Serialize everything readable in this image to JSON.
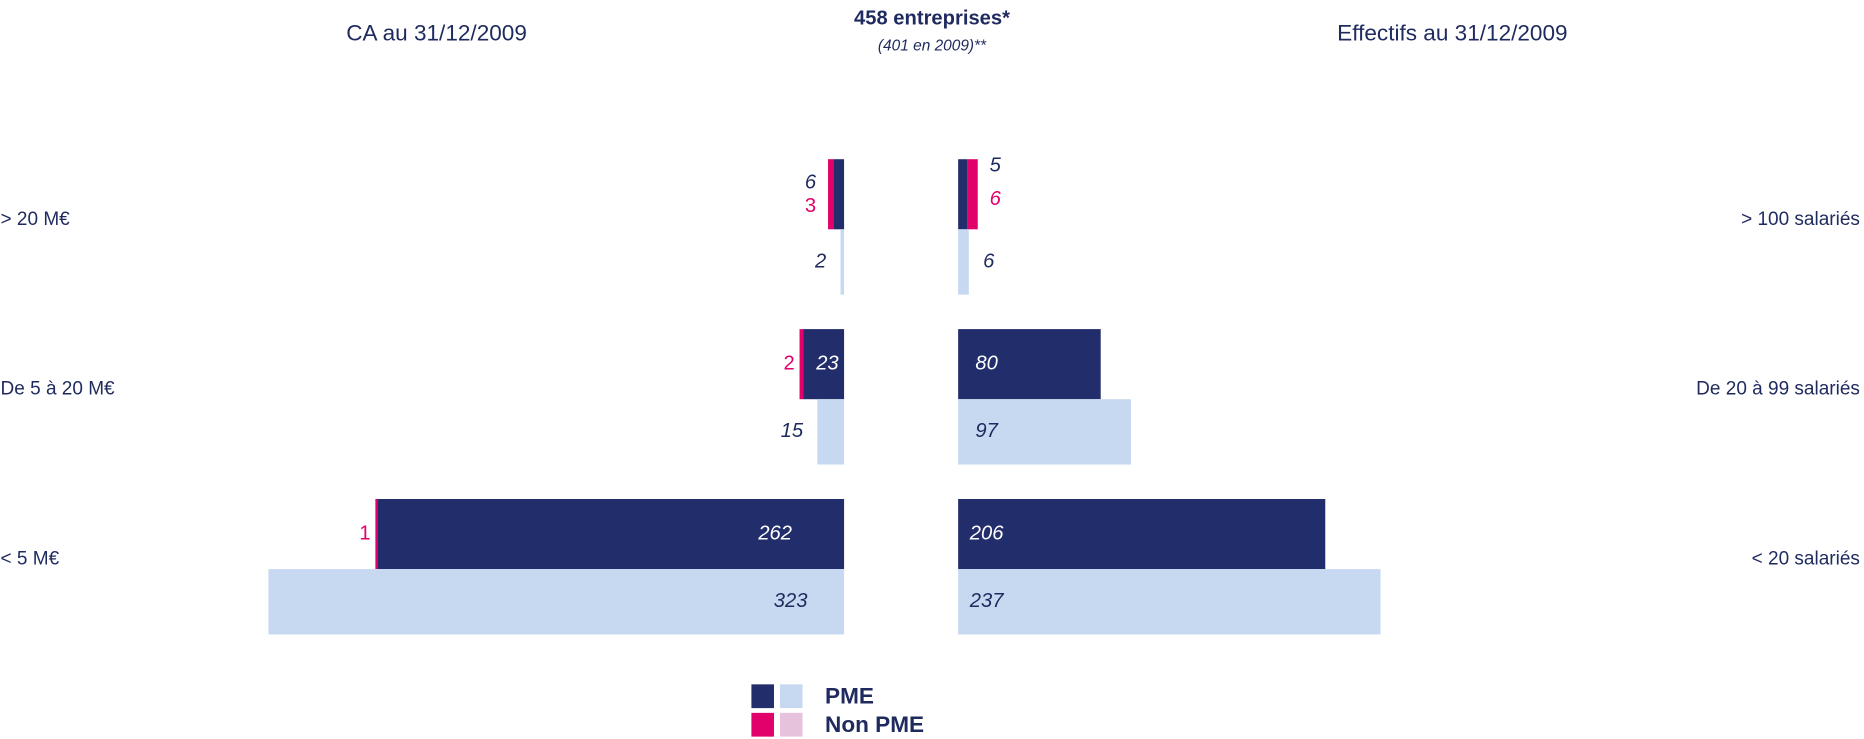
{
  "chart_data": {
    "type": "butterfly",
    "title": "458 entreprises*",
    "subtitle": "(401 en 2009)**",
    "legend": [
      {
        "label": "PME",
        "colors": [
          "#222d6b",
          "#c6d9f1"
        ]
      },
      {
        "label": "Non PME",
        "colors": [
          "#e2006a",
          "#e6c2dd"
        ]
      }
    ],
    "panels": [
      {
        "title": "CA au 31/12/2009",
        "side": "left",
        "categories": [
          "> 20 M€",
          "De 5 à 20 M€",
          "< 5 M€"
        ],
        "series": [
          {
            "color": "#222d6b",
            "values": [
              6,
              23,
              262
            ]
          },
          {
            "color": "#e2006a",
            "values": [
              3,
              2,
              1
            ]
          },
          {
            "color": "#c6d9f1",
            "values": [
              2,
              15,
              323
            ]
          }
        ]
      },
      {
        "title": "Effectifs au 31/12/2009",
        "side": "right",
        "categories": [
          "> 100 salariés",
          "De 20 à 99 salariés",
          "< 20 salariés"
        ],
        "series": [
          {
            "color": "#222d6b",
            "values": [
              5,
              80,
              206
            ]
          },
          {
            "color": "#e2006a",
            "values": [
              6,
              null,
              null
            ]
          },
          {
            "color": "#c6d9f1",
            "values": [
              6,
              97,
              237
            ]
          }
        ]
      }
    ]
  }
}
